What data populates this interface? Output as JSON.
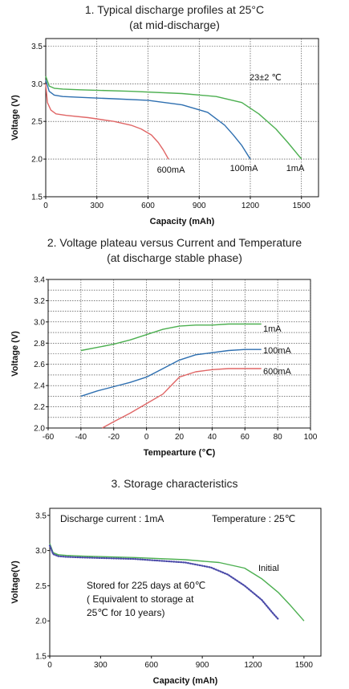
{
  "charts": [
    {
      "title_line1": "1. Typical discharge profiles at 25°C",
      "title_line2": "(at mid-discharge)",
      "note": "23±2 ℃",
      "chart_data": {
        "type": "line",
        "xlabel": "Capacity  (mAh)",
        "ylabel": "Voltage (V)",
        "xlim": [
          0,
          1600
        ],
        "ylim": [
          1.5,
          3.6
        ],
        "xticks": [
          0,
          300,
          600,
          900,
          1200,
          1500
        ],
        "yticks": [
          1.5,
          2.0,
          2.5,
          3.0,
          3.5
        ],
        "grid": true,
        "series": [
          {
            "name": "600mA",
            "color": "#e06666",
            "x": [
              0,
              10,
              30,
              60,
              120,
              250,
              400,
              500,
              560,
              620,
              660,
              690,
              720
            ],
            "y": [
              3.0,
              2.75,
              2.65,
              2.6,
              2.58,
              2.55,
              2.5,
              2.45,
              2.4,
              2.32,
              2.22,
              2.12,
              2.0
            ]
          },
          {
            "name": "100mA",
            "color": "#2e6fb0",
            "x": [
              0,
              20,
              50,
              100,
              200,
              400,
              600,
              800,
              950,
              1050,
              1100,
              1150,
              1200
            ],
            "y": [
              3.05,
              2.9,
              2.85,
              2.83,
              2.82,
              2.8,
              2.78,
              2.72,
              2.62,
              2.45,
              2.32,
              2.18,
              2.0
            ]
          },
          {
            "name": "1mA",
            "color": "#4caf50",
            "x": [
              0,
              20,
              50,
              100,
              200,
              500,
              800,
              1000,
              1150,
              1250,
              1350,
              1420,
              1500
            ],
            "y": [
              3.1,
              2.97,
              2.94,
              2.93,
              2.92,
              2.9,
              2.87,
              2.83,
              2.75,
              2.6,
              2.4,
              2.22,
              2.0
            ]
          }
        ]
      }
    },
    {
      "title_line1": "2. Voltage plateau versus Current and Temperature",
      "title_line2": "(at discharge stable phase)",
      "chart_data": {
        "type": "line",
        "xlabel": "Tempearture  (℃)",
        "ylabel": "Voltage  (V)",
        "xlim": [
          -60,
          100
        ],
        "ylim": [
          2.0,
          3.4
        ],
        "xticks": [
          -60,
          -40,
          -20,
          0,
          20,
          40,
          60,
          80,
          100
        ],
        "yticks": [
          2.0,
          2.2,
          2.4,
          2.6,
          2.8,
          3.0,
          3.2,
          3.4
        ],
        "grid": true,
        "series": [
          {
            "name": "1mA",
            "color": "#4caf50",
            "x": [
              -40,
              -30,
              -20,
              -10,
              0,
              10,
              20,
              30,
              40,
              50,
              60,
              70
            ],
            "y": [
              2.73,
              2.76,
              2.79,
              2.83,
              2.88,
              2.93,
              2.96,
              2.97,
              2.97,
              2.98,
              2.98,
              2.98
            ]
          },
          {
            "name": "100mA",
            "color": "#2e6fb0",
            "x": [
              -40,
              -30,
              -20,
              -10,
              0,
              10,
              20,
              30,
              40,
              50,
              60,
              70
            ],
            "y": [
              2.3,
              2.35,
              2.39,
              2.43,
              2.48,
              2.56,
              2.64,
              2.69,
              2.71,
              2.73,
              2.74,
              2.74
            ]
          },
          {
            "name": "600mA",
            "color": "#e06666",
            "x": [
              -27,
              -20,
              -10,
              0,
              10,
              15,
              20,
              30,
              40,
              50,
              60,
              70
            ],
            "y": [
              2.0,
              2.06,
              2.14,
              2.23,
              2.32,
              2.4,
              2.48,
              2.53,
              2.55,
              2.56,
              2.56,
              2.56
            ]
          }
        ]
      }
    },
    {
      "title_line1": "3. Storage characteristics",
      "note_current": "Discharge current : 1mA",
      "note_temperature": "Temperature : 25℃",
      "note_stored_1": "Stored for 225 days at 60℃",
      "note_stored_2": "( Equivalent to storage at",
      "note_stored_3": "25℃ for 10 years)",
      "chart_data": {
        "type": "line",
        "xlabel": "Capacity  (mAh)",
        "ylabel": "Voltage(V)",
        "xlim": [
          0,
          1600
        ],
        "ylim": [
          1.5,
          3.6
        ],
        "xticks": [
          0,
          300,
          600,
          900,
          1200,
          1500
        ],
        "yticks": [
          1.5,
          2.0,
          2.5,
          3.0,
          3.5
        ],
        "grid": false,
        "series": [
          {
            "name": "Initial",
            "color": "#4caf50",
            "x": [
              0,
              20,
              50,
              100,
              200,
              500,
              800,
              1000,
              1150,
              1250,
              1350,
              1420,
              1500
            ],
            "y": [
              3.1,
              2.97,
              2.94,
              2.93,
              2.92,
              2.9,
              2.87,
              2.83,
              2.75,
              2.6,
              2.4,
              2.22,
              2.0
            ]
          },
          {
            "name": "",
            "color": "#4a4aa8",
            "style": "dotted",
            "x": [
              0,
              20,
              50,
              100,
              200,
              500,
              800,
              950,
              1050,
              1150,
              1250,
              1320,
              1350
            ],
            "y": [
              3.07,
              2.95,
              2.92,
              2.91,
              2.9,
              2.88,
              2.83,
              2.76,
              2.66,
              2.5,
              2.3,
              2.1,
              2.02
            ]
          }
        ]
      }
    }
  ]
}
